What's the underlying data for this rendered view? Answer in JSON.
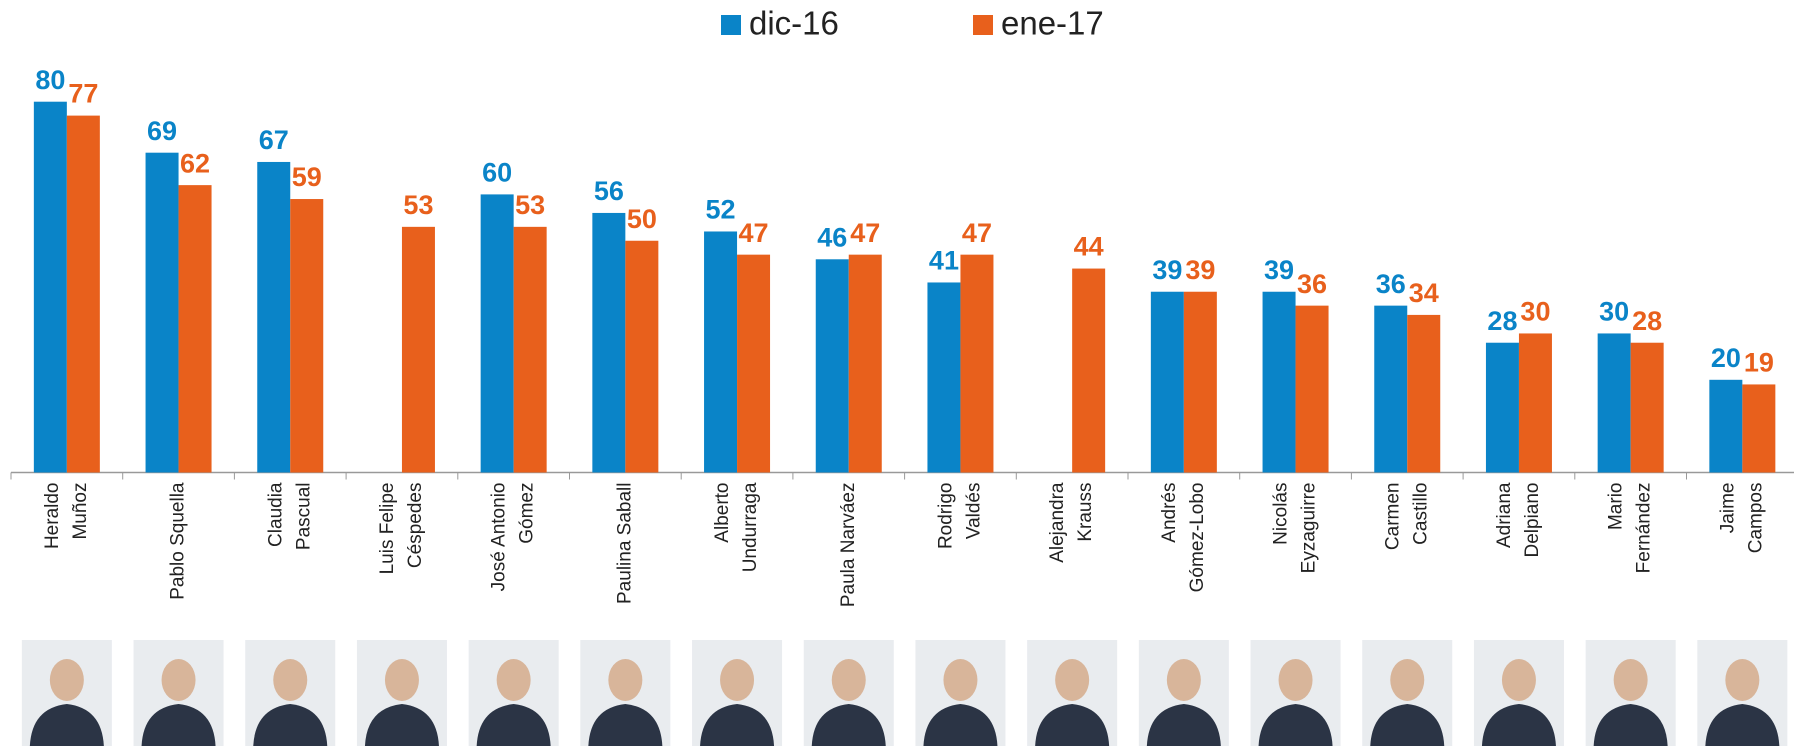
{
  "chart_data": {
    "type": "bar",
    "categories": [
      [
        "Heraldo",
        "Muñoz"
      ],
      [
        "Pablo Squella"
      ],
      [
        "Claudia",
        "Pascual"
      ],
      [
        "Luis Felipe",
        "Céspedes"
      ],
      [
        "José Antonio",
        "Gómez"
      ],
      [
        "Paulina Saball"
      ],
      [
        "Alberto",
        "Undurraga"
      ],
      [
        "Paula Narváez"
      ],
      [
        "Rodrigo",
        "Valdés"
      ],
      [
        "Alejandra",
        "Krauss"
      ],
      [
        "Andrés",
        "Gómez-Lobo"
      ],
      [
        "Nicolás",
        "Eyzaguirre"
      ],
      [
        "Carmen",
        "Castillo"
      ],
      [
        "Adriana",
        "Delpiano"
      ],
      [
        "Mario",
        "Fernández"
      ],
      [
        "Jaime",
        "Campos"
      ]
    ],
    "series": [
      {
        "name": "dic-16",
        "color": "#0a84c8",
        "values": [
          80,
          69,
          67,
          null,
          60,
          56,
          52,
          46,
          41,
          null,
          39,
          39,
          36,
          28,
          30,
          20
        ]
      },
      {
        "name": "ene-17",
        "color": "#e8601c",
        "values": [
          77,
          62,
          59,
          53,
          53,
          50,
          47,
          47,
          47,
          44,
          39,
          36,
          34,
          30,
          28,
          19
        ]
      }
    ],
    "ylim": [
      0,
      100
    ]
  }
}
